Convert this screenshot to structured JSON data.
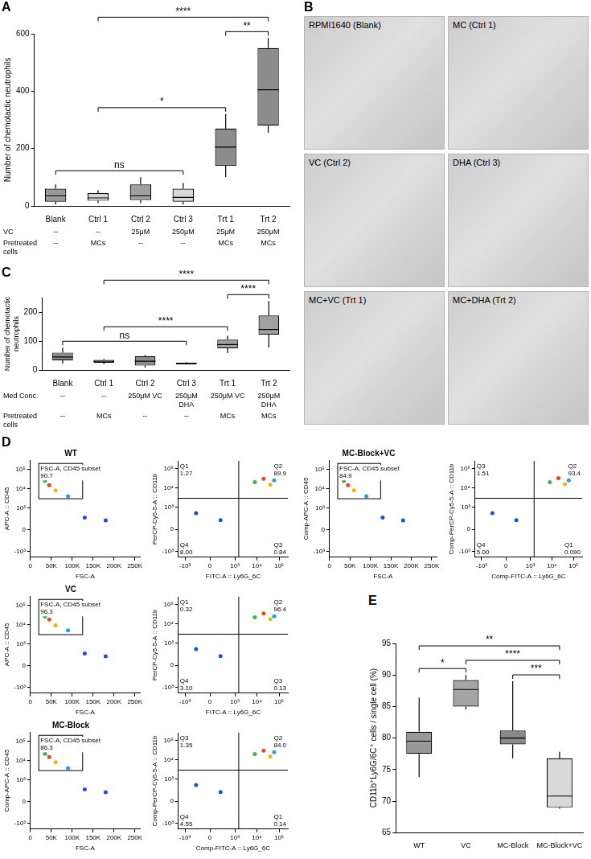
{
  "chart_data": [
    {
      "panel": "A",
      "type": "box",
      "y_label": "Number of chemotactic neutrophils",
      "categories": [
        "Blank",
        "Ctrl 1",
        "Ctrl 2",
        "Ctrl 3",
        "Trt 1",
        "Trt 2"
      ],
      "boxes": [
        {
          "min": 5,
          "q1": 15,
          "median": 35,
          "q3": 60,
          "max": 75
        },
        {
          "min": 10,
          "q1": 18,
          "median": 28,
          "q3": 45,
          "max": 55
        },
        {
          "min": 10,
          "q1": 20,
          "median": 35,
          "q3": 75,
          "max": 100
        },
        {
          "min": 5,
          "q1": 15,
          "median": 30,
          "q3": 60,
          "max": 80
        },
        {
          "min": 100,
          "q1": 140,
          "median": 205,
          "q3": 270,
          "max": 320
        },
        {
          "min": 255,
          "q1": 280,
          "median": 405,
          "q3": 550,
          "max": 585
        }
      ],
      "colors": [
        "#9a9a9a",
        "#d8d8d8",
        "#a0a0a0",
        "#d8d8d8",
        "#8c8c8c",
        "#8c8c8c"
      ],
      "ylim": [
        0,
        600
      ],
      "yticks": [
        0,
        200,
        400,
        600
      ],
      "grid": false,
      "rows": [
        {
          "label": "VC",
          "values": [
            "--",
            "--",
            "25μM",
            "250μM",
            "25μM",
            "250μM"
          ]
        },
        {
          "label": "Pretreated cells",
          "values": [
            "--",
            "MCs",
            "--",
            "--",
            "MCs",
            "MCs"
          ]
        }
      ],
      "comparisons": [
        {
          "from": "Blank",
          "to": "Ctrl 3",
          "label": "ns"
        },
        {
          "from": "Ctrl 1",
          "to": "Trt 1",
          "label": "*"
        },
        {
          "from": "Trt 1",
          "to": "Trt 2",
          "label": "**"
        },
        {
          "from": "Ctrl 1",
          "to": "Trt 2",
          "label": "****"
        }
      ]
    },
    {
      "panel": "C",
      "type": "box",
      "y_label": "Number of chemotactic neutrophils",
      "categories": [
        "Blank",
        "Ctrl 1",
        "Ctrl 2",
        "Ctrl 3",
        "Trt 1",
        "Trt 2"
      ],
      "boxes": [
        {
          "min": 22,
          "q1": 33,
          "median": 45,
          "q3": 60,
          "max": 77
        },
        {
          "min": 20,
          "q1": 25,
          "median": 30,
          "q3": 35,
          "max": 38
        },
        {
          "min": 8,
          "q1": 15,
          "median": 30,
          "q3": 48,
          "max": 52
        },
        {
          "min": 18,
          "q1": 20,
          "median": 22,
          "q3": 25,
          "max": 27
        },
        {
          "min": 58,
          "q1": 75,
          "median": 88,
          "q3": 105,
          "max": 118
        },
        {
          "min": 78,
          "q1": 122,
          "median": 140,
          "q3": 188,
          "max": 238
        }
      ],
      "colors": [
        "#8c8c8c",
        "#d0d0d0",
        "#8c8c8c",
        "#d0d0d0",
        "#a0a0a0",
        "#a0a0a0"
      ],
      "ylim": [
        0,
        250
      ],
      "yticks": [
        0,
        100,
        200
      ],
      "grid": false,
      "rows": [
        {
          "label": "Med Conc.",
          "values": [
            "--",
            "--",
            "250μM VC",
            "250μM DHA",
            "250μM VC",
            "250μM DHA"
          ]
        },
        {
          "label": "Pretreated cells",
          "values": [
            "--",
            "MCs",
            "--",
            "--",
            "MCs",
            "MCs"
          ]
        }
      ],
      "comparisons": [
        {
          "from": "Blank",
          "to": "Ctrl 3",
          "label": "ns"
        },
        {
          "from": "Ctrl 1",
          "to": "Trt 1",
          "label": "****"
        },
        {
          "from": "Trt 1",
          "to": "Trt 2",
          "label": "****"
        },
        {
          "from": "Ctrl 1",
          "to": "Trt 2",
          "label": "****"
        }
      ]
    },
    {
      "panel": "D",
      "type": "flow",
      "gate_axes": {
        "xlim": [
          0,
          262000
        ],
        "xticks": [
          0,
          {
            "value": 50000,
            "label": "50K"
          },
          {
            "value": 100000,
            "label": "100K"
          },
          {
            "value": 150000,
            "label": "150K"
          },
          {
            "value": 200000,
            "label": "200K"
          },
          {
            "value": 250000,
            "label": "250K"
          }
        ],
        "ylim": [
          -2000,
          300000
        ],
        "yticks": [
          {
            "value": -1000,
            "label": "-10³"
          },
          0,
          {
            "value": 1000,
            "label": "10³"
          },
          {
            "value": 10000,
            "label": "10⁴"
          },
          {
            "value": 100000,
            "label": "10⁵"
          }
        ]
      },
      "quadrant_axes": {
        "xlim": [
          -2000,
          250000
        ],
        "xticks": [
          {
            "value": -1000,
            "label": "-10³"
          },
          0,
          {
            "value": 1000,
            "label": "10³"
          },
          {
            "value": 10000,
            "label": "10⁴"
          },
          {
            "value": 100000,
            "label": "10⁵"
          }
        ],
        "ylim": [
          -2000,
          250000
        ],
        "yticks": [
          {
            "value": -1000,
            "label": "-10³"
          },
          0,
          {
            "value": 1000,
            "label": "10³"
          },
          {
            "value": 10000,
            "label": "10⁴"
          },
          {
            "value": 100000,
            "label": "10⁵"
          }
        ]
      },
      "samples": [
        {
          "name": "WT",
          "gate_plot": {
            "x_label": "FSC-A",
            "y_label": "APC-A :: CD45",
            "gate": {
              "name": "FSC-A, CD45 subset",
              "percent": 90.7,
              "x": [
                20000,
                125000
              ],
              "y": [
                3000,
                200000
              ]
            },
            "points": {
              "x": [
                45000,
                60000,
                35000,
                90000,
                130000,
                180000
              ],
              "y": [
                15000,
                8000,
                25000,
                4000,
                300,
                200
              ]
            }
          },
          "quadrant_plot": {
            "x_label": "FITC-A :: Ly6G_6C",
            "y_label": "PerCP-Cy5-5-A :: CD11b",
            "split": {
              "x": 1500,
              "y": 3000
            },
            "quadrants": {
              "names": [
                "Q1",
                "Q2",
                "Q3",
                "Q4"
              ],
              "values": [
                1.27,
                89.9,
                0.84,
                8
              ],
              "value_labels": [
                "1.27",
                "89.9",
                "0.84",
                "8.00"
              ]
            },
            "points": {
              "x": [
                20000,
                40000,
                8000,
                60000,
                200,
                -300
              ],
              "y": [
                30000,
                15000,
                20000,
                25000,
                200,
                500
              ]
            }
          }
        },
        {
          "name": "VC",
          "gate_plot": {
            "x_label": "FSC-A",
            "y_label": "APC-A :: CD45",
            "gate": {
              "name": "FSC-A, CD45 subset",
              "percent": 96.3,
              "x": [
                20000,
                125000
              ],
              "y": [
                3000,
                200000
              ]
            },
            "points": {
              "x": [
                45000,
                60000,
                35000,
                90000,
                130000,
                180000
              ],
              "y": [
                18000,
                9000,
                26000,
                5000,
                300,
                200
              ]
            }
          },
          "quadrant_plot": {
            "x_label": "FITC-A :: Ly6G_6C",
            "y_label": "PerCP-Cy5-5-A :: CD11b",
            "split": {
              "x": 1500,
              "y": 3000
            },
            "quadrants": {
              "names": [
                "Q1",
                "Q2",
                "Q3",
                "Q4"
              ],
              "values": [
                0.32,
                96.4,
                0.13,
                3.1
              ],
              "value_labels": [
                "0.32",
                "96.4",
                "0.13",
                "3.10"
              ]
            },
            "points": {
              "x": [
                20000,
                40000,
                8000,
                60000,
                200,
                -300
              ],
              "y": [
                35000,
                18000,
                22000,
                25000,
                200,
                500
              ]
            }
          }
        },
        {
          "name": "MC-Block",
          "gate_plot": {
            "x_label": "FSC-A",
            "y_label": "Comp-APC-A :: CD45",
            "gate": {
              "name": "FSC-A, CD45 subset",
              "percent": 86.3,
              "x": [
                20000,
                125000
              ],
              "y": [
                3000,
                200000
              ]
            },
            "points": {
              "x": [
                45000,
                60000,
                35000,
                90000,
                130000,
                180000
              ],
              "y": [
                15000,
                8000,
                22000,
                4000,
                300,
                200
              ]
            }
          },
          "quadrant_plot": {
            "x_label": "Comp-FITC-A :: Ly6G_6C",
            "y_label": "Comp-PerCP-Cy5-5-A :: CD11b",
            "split": {
              "x": 1500,
              "y": 3000
            },
            "quadrants": {
              "names": [
                "Q3",
                "Q2",
                "Q1",
                "Q4"
              ],
              "values": [
                1.35,
                84,
                0.14,
                4.55
              ],
              "value_labels": [
                "1.35",
                "84.0",
                "0.14",
                "4.55"
              ]
            },
            "points": {
              "x": [
                20000,
                40000,
                8000,
                60000,
                200,
                -300
              ],
              "y": [
                30000,
                15000,
                20000,
                25000,
                200,
                500
              ]
            }
          }
        },
        {
          "name": "MC-Block+VC",
          "gate_plot": {
            "x_label": "FSC-A",
            "y_label": "Comp-APC-A :: CD45",
            "gate": {
              "name": "FSC-A, CD45 subset",
              "percent": 84.9,
              "x": [
                20000,
                125000
              ],
              "y": [
                3000,
                200000
              ]
            },
            "points": {
              "x": [
                45000,
                60000,
                35000,
                90000,
                130000,
                180000
              ],
              "y": [
                15000,
                8000,
                25000,
                4000,
                300,
                200
              ]
            }
          },
          "quadrant_plot": {
            "x_label": "Comp-FITC-A :: Ly6G_6C",
            "y_label": "Comp-PerCP-Cy5-5-A :: CD11b",
            "split": {
              "x": 1500,
              "y": 3000
            },
            "quadrants": {
              "names": [
                "Q3",
                "Q2",
                "Q1",
                "Q4"
              ],
              "values": [
                1.51,
                93.4,
                0.09,
                5
              ],
              "value_labels": [
                "1.51",
                "93.4",
                "0.090",
                "5.00"
              ]
            },
            "points": {
              "x": [
                20000,
                40000,
                8000,
                60000,
                200,
                -300
              ],
              "y": [
                32000,
                16000,
                20000,
                25000,
                200,
                500
              ]
            }
          }
        }
      ]
    },
    {
      "panel": "E",
      "type": "box",
      "y_label": "CD11b⁺Ly6G/6C⁺ cells / single cell (%)",
      "categories": [
        "WT",
        "VC",
        "MC-Block",
        "MC-Block+VC"
      ],
      "boxes": [
        {
          "min": 73.8,
          "q1": 77.5,
          "median": 79.5,
          "q3": 81,
          "max": 86.4
        },
        {
          "min": 84.5,
          "q1": 85,
          "median": 87.7,
          "q3": 89.2,
          "max": 90
        },
        {
          "min": 76.8,
          "q1": 79,
          "median": 80,
          "q3": 81.2,
          "max": 89
        },
        {
          "min": 68.8,
          "q1": 69,
          "median": 70.8,
          "q3": 76.8,
          "max": 77.8
        }
      ],
      "colors": [
        "#999999",
        "#a5a5a5",
        "#8a8a8a",
        "#d9d9d9"
      ],
      "ylim": [
        65,
        95
      ],
      "yticks": [
        65,
        70,
        75,
        80,
        85,
        90,
        95
      ],
      "grid": false,
      "comparisons": [
        {
          "from": "WT",
          "to": "MC-Block+VC",
          "label": "**"
        },
        {
          "from": "WT",
          "to": "VC",
          "label": "*"
        },
        {
          "from": "VC",
          "to": "MC-Block+VC",
          "label": "****"
        },
        {
          "from": "MC-Block",
          "to": "MC-Block+VC",
          "label": "***"
        }
      ]
    }
  ],
  "images": {
    "panel": "B",
    "tiles": [
      {
        "label": "RPMI1640 (Blank)"
      },
      {
        "label": "MC (Ctrl 1)"
      },
      {
        "label": "VC (Ctrl 2)"
      },
      {
        "label": "DHA (Ctrl 3)"
      },
      {
        "label": "MC+VC (Trt 1)"
      },
      {
        "label": "MC+DHA (Trt 2)"
      }
    ]
  }
}
